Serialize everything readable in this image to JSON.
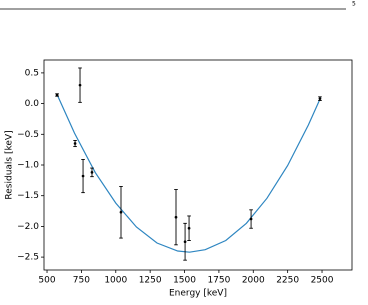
{
  "page_number": "5",
  "chart_data": {
    "type": "errorbar",
    "x_label": "Energy [keV]",
    "y_label": "Residuals [keV]",
    "xlim": [
      478,
      2718
    ],
    "ylim": [
      -2.71,
      0.71
    ],
    "xticks": [
      500,
      750,
      1000,
      1250,
      1500,
      1750,
      2000,
      2250,
      2500
    ],
    "yticks": [
      {
        "value": -2.5,
        "label": "−2.5"
      },
      {
        "value": -2.0,
        "label": "−2.0"
      },
      {
        "value": -1.5,
        "label": "−1.5"
      },
      {
        "value": -1.0,
        "label": "−1.0"
      },
      {
        "value": -0.5,
        "label": "−0.5"
      },
      {
        "value": 0.0,
        "label": "0.0"
      },
      {
        "value": 0.5,
        "label": "0.5"
      }
    ],
    "series": [
      {
        "color": "#000000",
        "x": [
          573,
          704,
          740,
          762,
          827,
          1038,
          1438,
          1504,
          1533,
          1984,
          2485
        ],
        "values": [
          0.14,
          -0.65,
          0.3,
          -1.18,
          -1.12,
          -1.77,
          -1.85,
          -2.25,
          -2.03,
          -1.88,
          0.08
        ],
        "errors": [
          0.02,
          0.05,
          0.28,
          0.27,
          0.07,
          0.42,
          0.45,
          0.3,
          0.2,
          0.15,
          0.03
        ]
      }
    ],
    "fit": {
      "color": "#2e86c1",
      "x": [
        575,
        700,
        850,
        1000,
        1150,
        1300,
        1450,
        1536,
        1650,
        1800,
        1950,
        2100,
        2250,
        2400,
        2490
      ],
      "values": [
        0.14,
        -0.48,
        -1.12,
        -1.62,
        -2.01,
        -2.27,
        -2.4,
        -2.42,
        -2.38,
        -2.23,
        -1.95,
        -1.54,
        -1.01,
        -0.35,
        0.1
      ]
    }
  }
}
